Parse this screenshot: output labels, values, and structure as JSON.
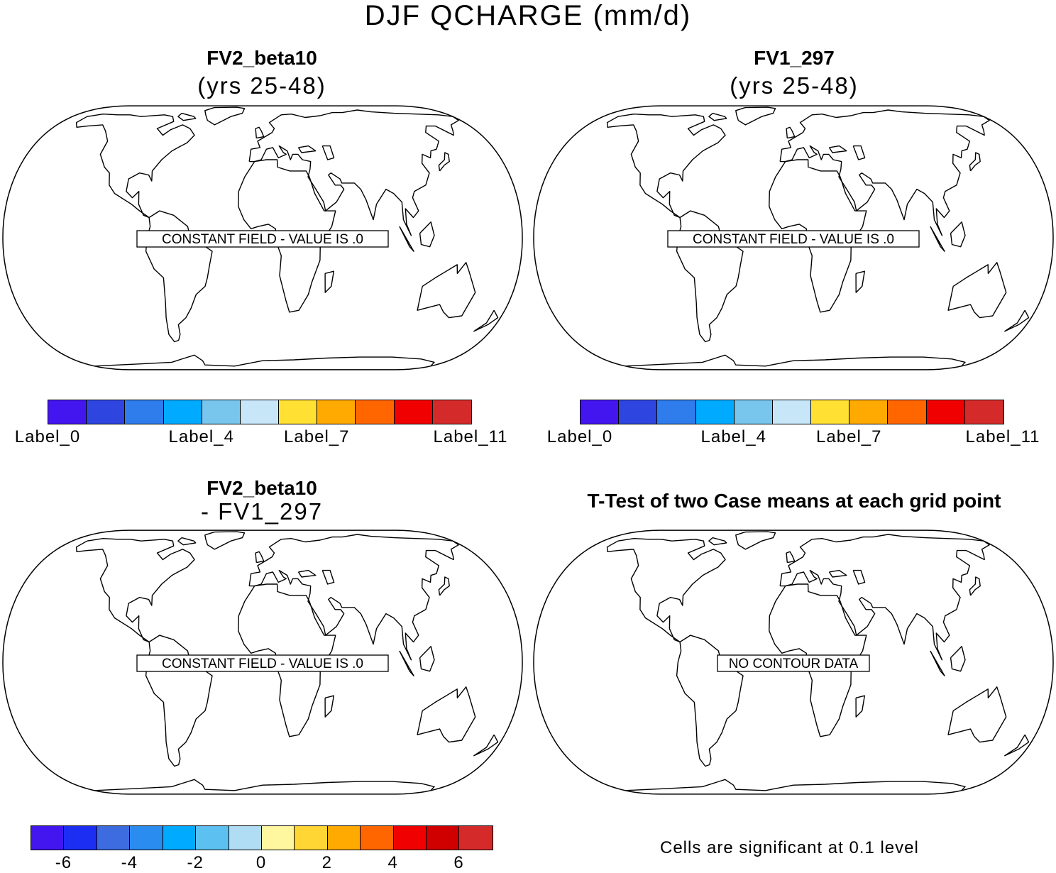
{
  "title": "DJF QCHARGE (mm/d)",
  "panels": [
    {
      "title": "FV2_beta10",
      "subtitle": "(yrs 25-48)",
      "box_text": "CONSTANT FIELD - VALUE IS .0"
    },
    {
      "title": "FV1_297",
      "subtitle": "(yrs 25-48)",
      "box_text": "CONSTANT FIELD - VALUE IS .0"
    },
    {
      "title": "FV2_beta10",
      "subtitle": "- FV1_297",
      "box_text": "CONSTANT FIELD - VALUE IS .0"
    },
    {
      "title": "T-Test of two Case means at each grid point",
      "subtitle": "",
      "box_text": "NO CONTOUR DATA"
    }
  ],
  "colorbar_top": {
    "colors": [
      "#4316f0",
      "#2e45e0",
      "#2f7cec",
      "#00aaff",
      "#78c6ee",
      "#c7e6f8",
      "#ffe033",
      "#ffaa00",
      "#ff6600",
      "#f00000",
      "#d42a2a"
    ],
    "labels": [
      {
        "text": "Label_0",
        "index": 0
      },
      {
        "text": "Label_4",
        "index": 4
      },
      {
        "text": "Label_7",
        "index": 7
      },
      {
        "text": "Label_11",
        "index": 11
      }
    ]
  },
  "colorbar_bottom": {
    "colors": [
      "#4316f0",
      "#1b2ef2",
      "#3d6be0",
      "#2b8cf0",
      "#00aaff",
      "#5cc0f0",
      "#b0dcf4",
      "#fff6a0",
      "#ffd633",
      "#ffaa00",
      "#ff6600",
      "#f00000",
      "#d00000",
      "#d42a2a"
    ],
    "labels": [
      {
        "text": "-6",
        "index": 1
      },
      {
        "text": "-4",
        "index": 3
      },
      {
        "text": "-2",
        "index": 5
      },
      {
        "text": "0",
        "index": 7
      },
      {
        "text": "2",
        "index": 9
      },
      {
        "text": "4",
        "index": 11
      },
      {
        "text": "6",
        "index": 13
      }
    ]
  },
  "significance_note": "Cells are significant at 0.1 level"
}
